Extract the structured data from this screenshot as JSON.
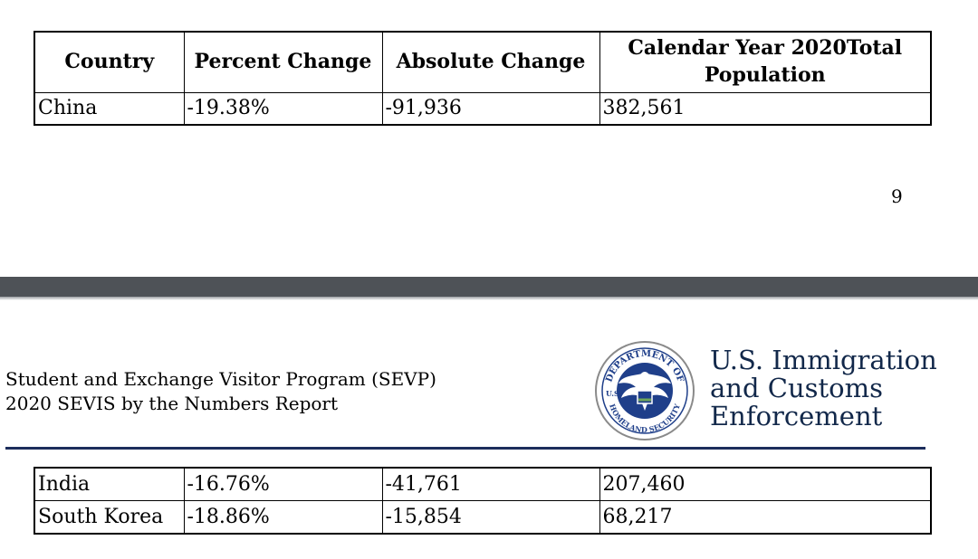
{
  "table_top": {
    "headers": [
      "Country",
      "Percent Change",
      "Absolute Change",
      "Calendar Year 2020Total Population"
    ],
    "rows": [
      [
        "China",
        "-19.38%",
        "-91,936",
        "382,561"
      ]
    ]
  },
  "page_number": "9",
  "report_header": {
    "line1": "Student and Exchange Visitor Program (SEVP)",
    "line2": "2020 SEVIS by the Numbers Report",
    "agency_line1": "U.S. Immigration",
    "agency_line2": "and Customs",
    "agency_line3": "Enforcement",
    "seal_text_top": "DEPARTMENT OF",
    "seal_text_left": "U.S.",
    "seal_text_bottom": "HOMELAND SECURITY",
    "seal_colors": {
      "ring": "#ffffff",
      "field": "#1f3f8a",
      "eagle": "#ffffff",
      "rim": "#8a8a8a"
    },
    "rule_color": "#1c2d5c",
    "agency_color": "#12284a"
  },
  "table_bottom": {
    "rows": [
      [
        "India",
        "-16.76%",
        "-41,761",
        "207,460"
      ],
      [
        "South Korea",
        "-18.86%",
        "-15,854",
        "68,217"
      ]
    ]
  }
}
